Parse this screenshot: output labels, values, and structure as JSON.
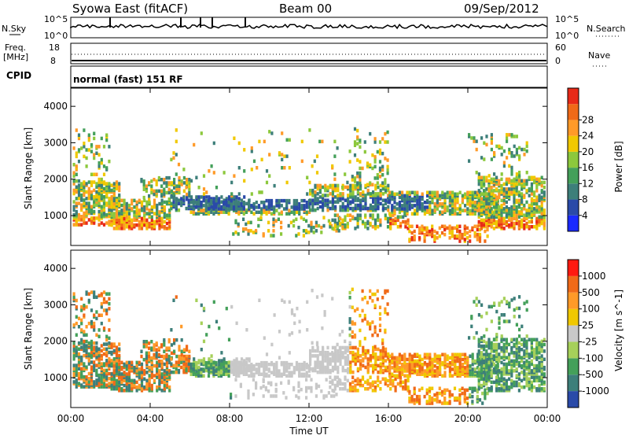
{
  "header": {
    "station": "Syowa East (fitACF)",
    "beam": "Beam 00",
    "date": "09/Sep/2012"
  },
  "summary": {
    "nsky_label": "N.Sky",
    "nsky_top": "10^5",
    "nsky_bottom": "10^0",
    "nsearch_label": "N.Search",
    "nsearch_top": "10^5",
    "nsearch_bottom": "10^0",
    "freq_label": "Freq.",
    "freq_unit": "[MHz]",
    "freq_top": "18",
    "freq_bottom": "8",
    "nave_label": "Nave",
    "nave_top": "60",
    "nave_bottom": "0",
    "cpid_label": "CPID",
    "cpid_value": "normal (fast) 151 RF"
  },
  "chart_data": [
    {
      "type": "heatmap",
      "title": "",
      "quantity": "Power",
      "colorbar_label": "Power [dB]",
      "colorbar_ticks": [
        "4",
        "8",
        "12",
        "16",
        "20",
        "24",
        "28"
      ],
      "colorbar_range": [
        0,
        30
      ],
      "colors": [
        "#1a2aff",
        "#2a4aa8",
        "#3d7f7a",
        "#44a05a",
        "#8cc83c",
        "#f0c800",
        "#ff9a28",
        "#f06a18",
        "#e82a18"
      ],
      "ylabel": "Slant Range [km]",
      "yticks": [
        "1000",
        "2000",
        "3000",
        "4000"
      ],
      "ylim": [
        180,
        4500
      ],
      "xlabel": "Time UT",
      "xticks": [
        "00:00",
        "04:00",
        "08:00",
        "12:00",
        "16:00",
        "20:00",
        "00:00"
      ],
      "xlim_hours": [
        0,
        24
      ]
    },
    {
      "type": "heatmap",
      "title": "",
      "quantity": "Velocity",
      "colorbar_label": "Velocity [m s^-1]",
      "colorbar_ticks": [
        "1000",
        "500",
        "100",
        "25",
        "-25",
        "-100",
        "-500",
        "-1000"
      ],
      "colorbar_range": [
        -1000,
        1000
      ],
      "colors": [
        "#2a4aa8",
        "#3d7f7a",
        "#44a05a",
        "#a6d05a",
        "#c8c8c8",
        "#f0c800",
        "#ff9a28",
        "#f06a18",
        "#ff1a10"
      ],
      "ylabel": "Slant Range [km]",
      "yticks": [
        "1000",
        "2000",
        "3000",
        "4000"
      ],
      "ylim": [
        180,
        4500
      ],
      "xlabel": "Time UT",
      "xticks": [
        "00:00",
        "04:00",
        "08:00",
        "12:00",
        "16:00",
        "20:00",
        "00:00"
      ],
      "xlim_hours": [
        0,
        24
      ]
    }
  ]
}
